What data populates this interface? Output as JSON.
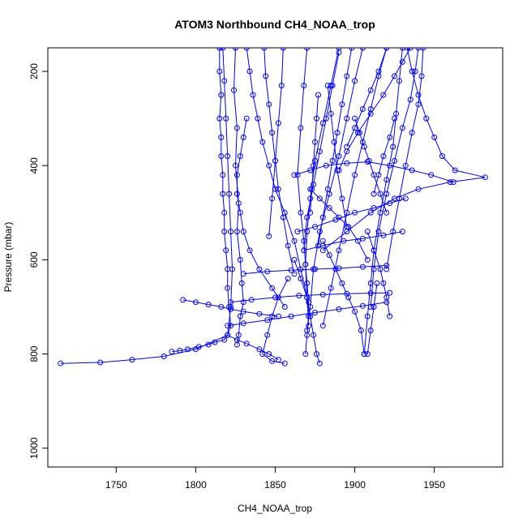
{
  "chart_data": {
    "type": "line",
    "title": "ATOM3 Northbound CH4_NOAA_trop",
    "xlabel": "CH4_NOAA_trop",
    "ylabel": "Pressure (mbar)",
    "xlim": [
      1707,
      1993
    ],
    "ylim": [
      1040,
      150
    ],
    "y_reversed": true,
    "x_ticks": [
      1750,
      1800,
      1850,
      1900,
      1950
    ],
    "y_ticks": [
      200,
      400,
      600,
      800,
      1000
    ],
    "marker": "open-circle",
    "series_color": "#0000ff",
    "series": [
      {
        "x": [
          1815,
          1815,
          1816,
          1815,
          1816,
          1816,
          1817,
          1817,
          1818,
          1818,
          1819,
          1820,
          1820,
          1821,
          1822,
          1820,
          1818,
          1812,
          1808,
          1802,
          1795,
          1790,
          1785
        ],
        "y": [
          150,
          200,
          250,
          300,
          340,
          380,
          420,
          460,
          500,
          540,
          580,
          620,
          660,
          700,
          740,
          760,
          770,
          775,
          780,
          785,
          790,
          793,
          795
        ]
      },
      {
        "x": [
          1817,
          1818,
          1819,
          1820,
          1821,
          1822,
          1823,
          1822,
          1820,
          1800,
          1780,
          1760,
          1740,
          1715
        ],
        "y": [
          150,
          220,
          300,
          380,
          460,
          540,
          620,
          700,
          760,
          790,
          805,
          812,
          818,
          820
        ]
      },
      {
        "x": [
          1825,
          1824,
          1826,
          1825,
          1827,
          1826,
          1828,
          1829,
          1830,
          1828,
          1827,
          1826
        ],
        "y": [
          150,
          240,
          320,
          400,
          480,
          540,
          600,
          650,
          690,
          720,
          760,
          780
        ]
      },
      {
        "x": [
          1870,
          1868,
          1866,
          1864,
          1866,
          1868,
          1869,
          1870,
          1871,
          1871,
          1870,
          1869
        ],
        "y": [
          150,
          230,
          320,
          420,
          500,
          560,
          610,
          650,
          690,
          720,
          760,
          800
        ]
      },
      {
        "x": [
          1890,
          1885,
          1880,
          1875,
          1872,
          1870,
          1869,
          1870,
          1871
        ],
        "y": [
          150,
          230,
          310,
          390,
          470,
          540,
          610,
          680,
          740
        ]
      },
      {
        "x": [
          1905,
          1900,
          1895,
          1890,
          1884,
          1878,
          1874,
          1872,
          1870
        ],
        "y": [
          150,
          220,
          300,
          380,
          460,
          540,
          620,
          700,
          750
        ]
      },
      {
        "x": [
          1920,
          1915,
          1910,
          1905,
          1900,
          1895,
          1890,
          1885,
          1880
        ],
        "y": [
          150,
          210,
          280,
          350,
          420,
          500,
          580,
          660,
          740
        ]
      },
      {
        "x": [
          1930,
          1928,
          1926,
          1924,
          1920,
          1916,
          1912,
          1910,
          1908,
          1906
        ],
        "y": [
          150,
          220,
          290,
          360,
          430,
          500,
          580,
          650,
          720,
          800
        ]
      },
      {
        "x": [
          1940,
          1938,
          1935,
          1930,
          1925,
          1920,
          1915,
          1912,
          1910
        ],
        "y": [
          150,
          200,
          260,
          320,
          390,
          460,
          540,
          620,
          700
        ]
      },
      {
        "x": [
          1943,
          1942,
          1940,
          1936,
          1932,
          1928,
          1924,
          1920
        ],
        "y": [
          150,
          210,
          270,
          330,
          400,
          470,
          540,
          620
        ]
      },
      {
        "x": [
          1933,
          1936,
          1940,
          1945,
          1950,
          1955,
          1963,
          1982,
          1960,
          1940,
          1925,
          1910,
          1895,
          1880
        ],
        "y": [
          150,
          200,
          250,
          300,
          340,
          380,
          410,
          425,
          435,
          450,
          470,
          500,
          540,
          580
        ]
      },
      {
        "x": [
          1920,
          1915,
          1910,
          1905,
          1900,
          1895
        ],
        "y": [
          150,
          200,
          240,
          280,
          320,
          360
        ]
      },
      {
        "x": [
          1935,
          1930,
          1925,
          1918,
          1910,
          1902,
          1895,
          1890
        ],
        "y": [
          150,
          180,
          210,
          250,
          290,
          330,
          370,
          410
        ]
      },
      {
        "x": [
          1890,
          1886,
          1882,
          1878,
          1874,
          1870,
          1868
        ],
        "y": [
          160,
          230,
          300,
          370,
          440,
          510,
          580
        ]
      },
      {
        "x": [
          1898,
          1895,
          1892,
          1889,
          1886,
          1883,
          1880,
          1877
        ],
        "y": [
          150,
          210,
          270,
          330,
          390,
          450,
          510,
          570
        ]
      },
      {
        "x": [
          1832,
          1834,
          1836,
          1839,
          1842,
          1846,
          1850,
          1856,
          1862,
          1866,
          1870
        ],
        "y": [
          150,
          200,
          250,
          300,
          350,
          400,
          450,
          500,
          560,
          620,
          680
        ]
      },
      {
        "x": [
          1843,
          1844,
          1846,
          1848,
          1850,
          1852,
          1855,
          1858,
          1862
        ],
        "y": [
          150,
          210,
          270,
          330,
          390,
          450,
          510,
          570,
          630
        ]
      },
      {
        "x": [
          1855,
          1854,
          1852,
          1850,
          1848,
          1846
        ],
        "y": [
          150,
          230,
          310,
          390,
          470,
          550
        ]
      },
      {
        "x": [
          1832,
          1830,
          1828,
          1826,
          1826,
          1828,
          1830,
          1834,
          1840,
          1848,
          1856
        ],
        "y": [
          300,
          340,
          380,
          420,
          460,
          500,
          540,
          580,
          620,
          660,
          700
        ]
      },
      {
        "x": [
          1792,
          1800,
          1808,
          1816,
          1822,
          1830,
          1840,
          1852
        ],
        "y": [
          685,
          690,
          695,
          700,
          705,
          710,
          715,
          720
        ]
      },
      {
        "x": [
          1820,
          1830,
          1845,
          1860,
          1875,
          1890,
          1905,
          1920
        ],
        "y": [
          740,
          735,
          728,
          720,
          712,
          705,
          698,
          690
        ]
      },
      {
        "x": [
          1822,
          1835,
          1850,
          1865,
          1880,
          1895,
          1910,
          1922
        ],
        "y": [
          690,
          685,
          680,
          676,
          674,
          672,
          671,
          670
        ]
      },
      {
        "x": [
          1830,
          1845,
          1860,
          1875,
          1890,
          1905,
          1920
        ],
        "y": [
          630,
          625,
          622,
          620,
          618,
          615,
          612
        ]
      },
      {
        "x": [
          1862,
          1866,
          1870,
          1872,
          1874,
          1876,
          1878
        ],
        "y": [
          600,
          640,
          680,
          720,
          760,
          800,
          820
        ]
      },
      {
        "x": [
          1880,
          1884,
          1888,
          1892,
          1896,
          1900,
          1904,
          1906
        ],
        "y": [
          560,
          590,
          620,
          650,
          680,
          710,
          750,
          800
        ]
      },
      {
        "x": [
          1908,
          1912,
          1916,
          1918,
          1920,
          1922
        ],
        "y": [
          540,
          580,
          620,
          650,
          680,
          720
        ]
      },
      {
        "x": [
          1914,
          1912,
          1910,
          1908
        ],
        "y": [
          650,
          700,
          750,
          800
        ]
      },
      {
        "x": [
          1862,
          1872,
          1882,
          1895,
          1908,
          1922,
          1936,
          1948,
          1962
        ],
        "y": [
          420,
          410,
          400,
          395,
          392,
          400,
          410,
          420,
          435
        ]
      },
      {
        "x": [
          1864,
          1875,
          1888,
          1900,
          1912,
          1922,
          1932
        ],
        "y": [
          540,
          530,
          515,
          500,
          490,
          480,
          470
        ]
      },
      {
        "x": [
          1868,
          1880,
          1893,
          1905,
          1918,
          1930
        ],
        "y": [
          580,
          570,
          560,
          555,
          548,
          540
        ]
      },
      {
        "x": [
          1858,
          1852,
          1848,
          1845,
          1842,
          1848,
          1856
        ],
        "y": [
          640,
          680,
          720,
          760,
          800,
          815,
          820
        ]
      },
      {
        "x": [
          1820,
          1826,
          1832,
          1840,
          1846,
          1852
        ],
        "y": [
          760,
          770,
          778,
          790,
          800,
          812
        ]
      },
      {
        "x": [
          1872,
          1878,
          1884,
          1890,
          1896,
          1902,
          1908
        ],
        "y": [
          450,
          470,
          490,
          510,
          530,
          560,
          600
        ]
      },
      {
        "x": [
          1900,
          1903,
          1906,
          1909,
          1912,
          1916,
          1920
        ],
        "y": [
          300,
          330,
          360,
          390,
          420,
          460,
          500
        ]
      },
      {
        "x": [
          1925,
          1922,
          1918,
          1915,
          1912
        ],
        "y": [
          300,
          340,
          380,
          420,
          460
        ]
      },
      {
        "x": [
          1877,
          1876,
          1875,
          1874,
          1873,
          1872
        ],
        "y": [
          250,
          300,
          350,
          400,
          450,
          500
        ]
      },
      {
        "x": [
          1883,
          1885,
          1887,
          1889,
          1892,
          1895
        ],
        "y": [
          230,
          290,
          350,
          410,
          470,
          530
        ]
      }
    ]
  }
}
